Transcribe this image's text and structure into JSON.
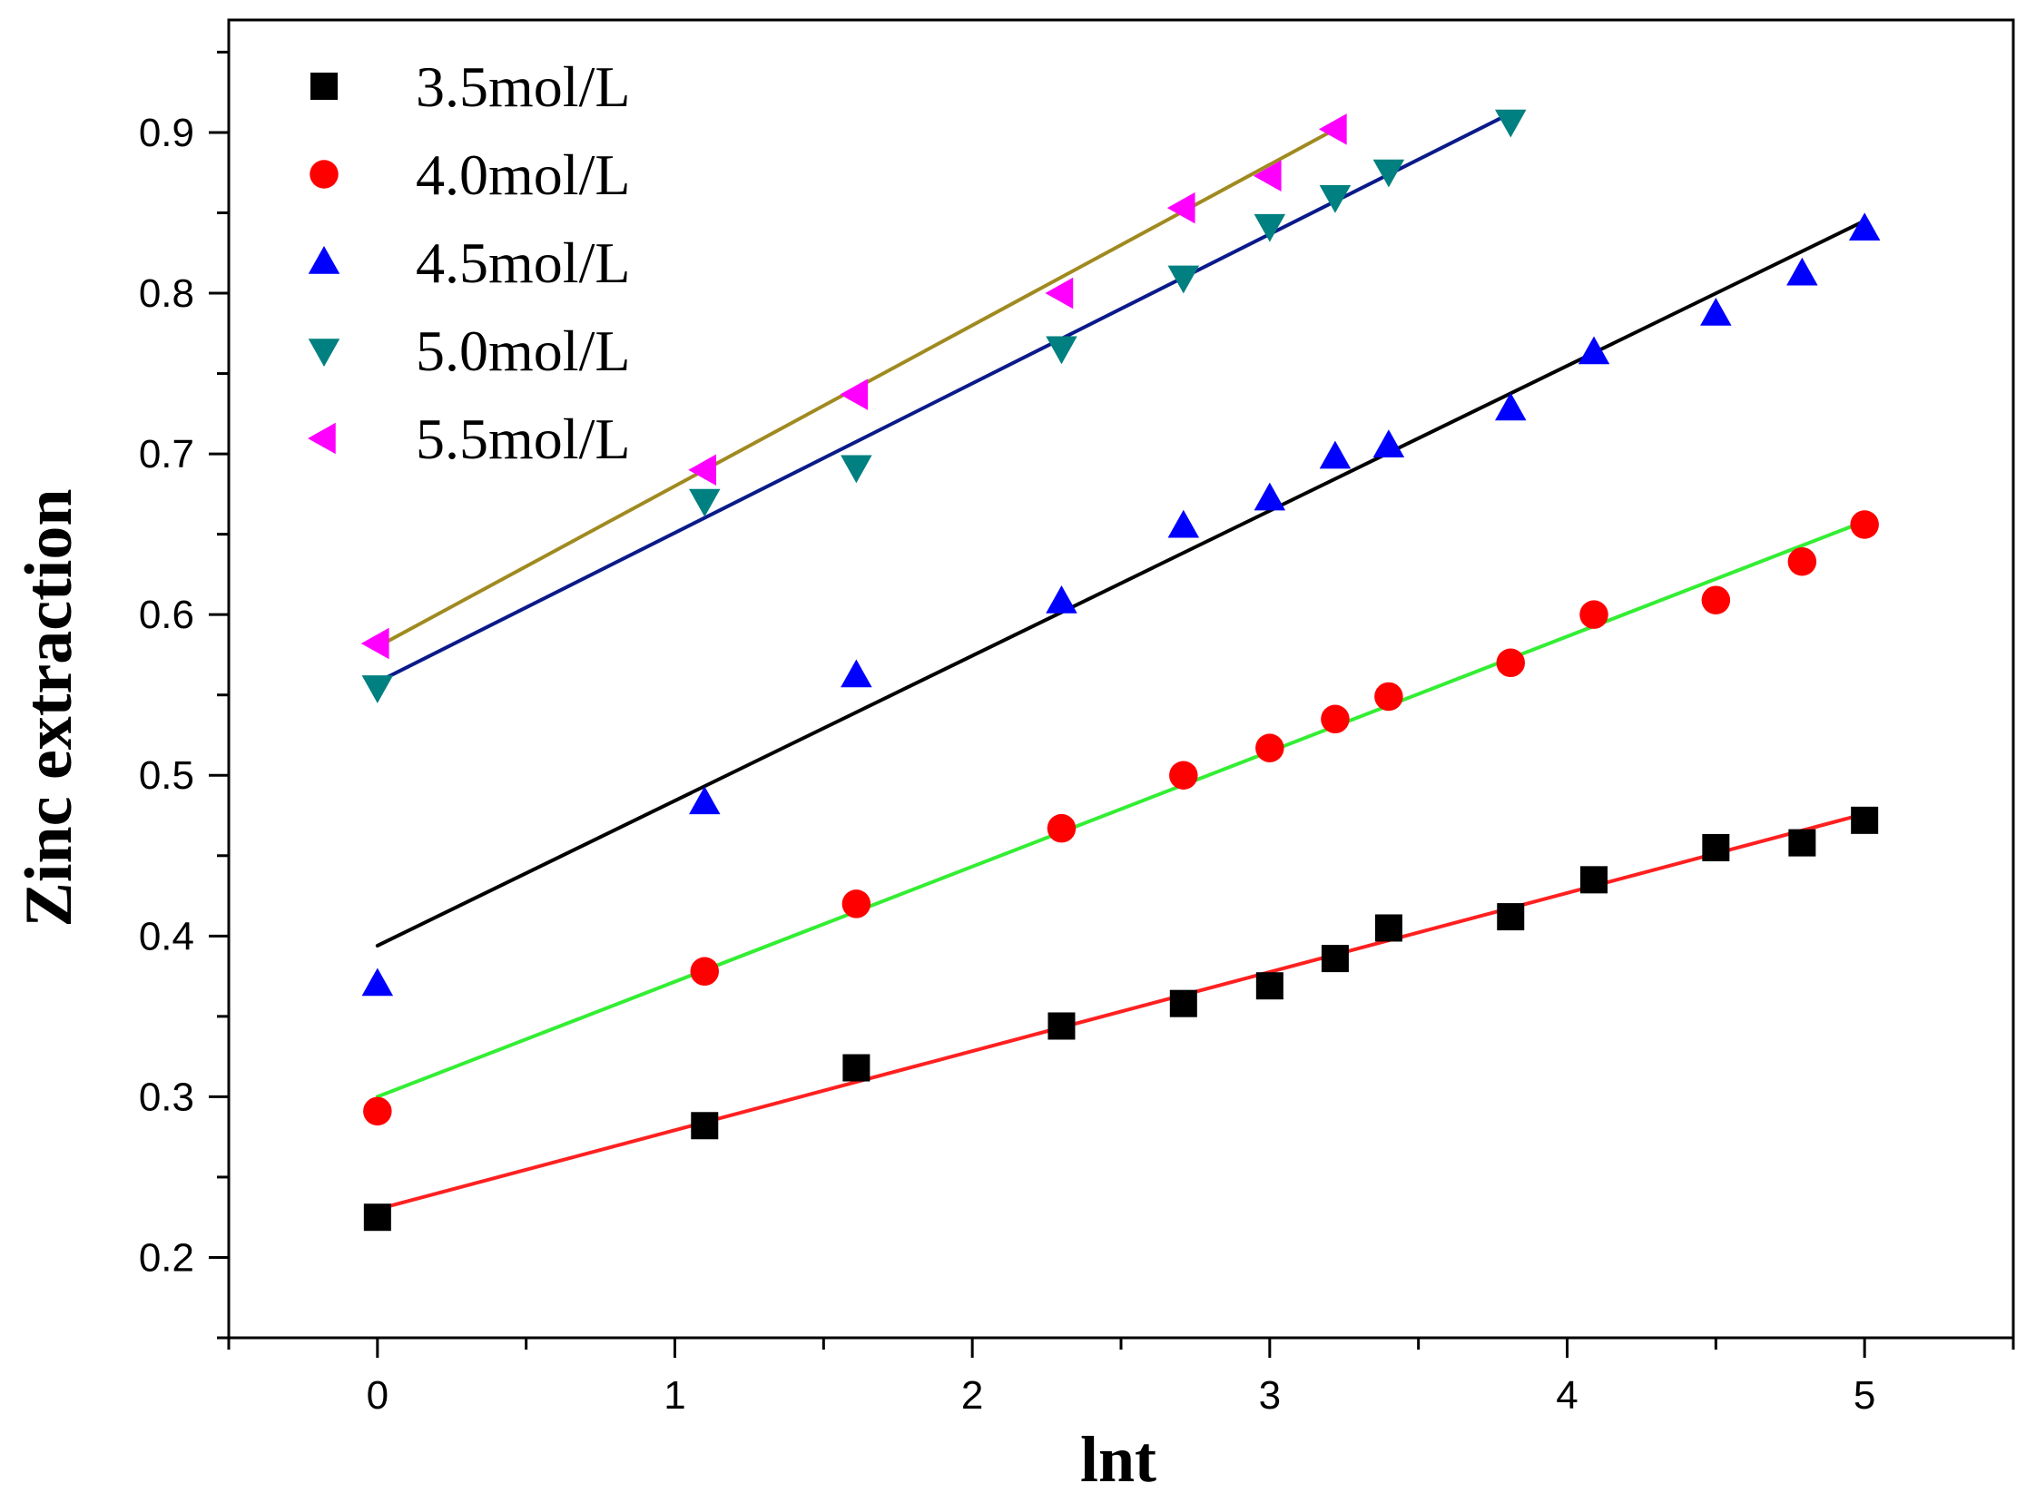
{
  "chart_data": {
    "type": "scatter",
    "title": "",
    "xlabel": "lnt",
    "ylabel": "Zinc extraction",
    "xlim": [
      -0.5,
      5.5
    ],
    "ylim": [
      0.15,
      0.97
    ],
    "xticks": [
      0,
      1,
      2,
      3,
      4,
      5
    ],
    "xtick_labels": [
      "0",
      "1",
      "2",
      "3",
      "4",
      "5"
    ],
    "yticks": [
      0.2,
      0.3,
      0.4,
      0.5,
      0.6,
      0.7,
      0.8,
      0.9
    ],
    "ytick_labels": [
      "0.2",
      "0.3",
      "0.4",
      "0.5",
      "0.6",
      "0.7",
      "0.8",
      "0.9"
    ],
    "grid": false,
    "legend_position": "top-left",
    "series": [
      {
        "name": "3.5mol/L",
        "marker": "square",
        "marker_color": "#000000",
        "fit_color": "#ff2020",
        "x": [
          0,
          1.1,
          1.61,
          2.3,
          2.71,
          3.0,
          3.22,
          3.4,
          3.81,
          4.09,
          4.5,
          4.79,
          5.0
        ],
        "y": [
          0.225,
          0.282,
          0.318,
          0.344,
          0.358,
          0.369,
          0.386,
          0.405,
          0.412,
          0.435,
          0.455,
          0.458,
          0.472
        ],
        "fit": [
          [
            0,
            0.23
          ],
          [
            5.0,
            0.476
          ]
        ]
      },
      {
        "name": "4.0mol/L",
        "marker": "circle",
        "marker_color": "#ff0000",
        "fit_color": "#33ee33",
        "x": [
          0,
          1.1,
          1.61,
          2.3,
          2.71,
          3.0,
          3.22,
          3.4,
          3.81,
          4.09,
          4.5,
          4.79,
          5.0
        ],
        "y": [
          0.291,
          0.378,
          0.42,
          0.467,
          0.5,
          0.517,
          0.535,
          0.549,
          0.57,
          0.6,
          0.609,
          0.633,
          0.656
        ],
        "fit": [
          [
            0,
            0.3
          ],
          [
            5.0,
            0.658
          ]
        ]
      },
      {
        "name": "4.5mol/L",
        "marker": "triangle-up",
        "marker_color": "#0000ff",
        "fit_color": "#000000",
        "x": [
          0,
          1.1,
          1.61,
          2.3,
          2.71,
          3.0,
          3.22,
          3.4,
          3.81,
          4.09,
          4.5,
          4.79,
          5.0
        ],
        "y": [
          0.37,
          0.483,
          0.562,
          0.608,
          0.655,
          0.672,
          0.698,
          0.705,
          0.728,
          0.763,
          0.787,
          0.812,
          0.84
        ],
        "fit": [
          [
            0,
            0.394
          ],
          [
            5.0,
            0.845
          ]
        ]
      },
      {
        "name": "5.0mol/L",
        "marker": "triangle-down",
        "marker_color": "#008080",
        "fit_color": "#0a1a8a",
        "x": [
          0,
          1.1,
          1.61,
          2.3,
          2.71,
          3.0,
          3.22,
          3.4,
          3.81
        ],
        "y": [
          0.555,
          0.671,
          0.692,
          0.766,
          0.81,
          0.842,
          0.86,
          0.876,
          0.907
        ],
        "fit": [
          [
            0,
            0.558
          ],
          [
            3.81,
            0.912
          ]
        ]
      },
      {
        "name": "5.5mol/L",
        "marker": "triangle-left",
        "marker_color": "#ff00ff",
        "fit_color": "#a08a20",
        "x": [
          0,
          1.1,
          1.61,
          2.3,
          2.71,
          3.0,
          3.22
        ],
        "y": [
          0.582,
          0.69,
          0.737,
          0.8,
          0.853,
          0.873,
          0.902
        ],
        "fit": [
          [
            0,
            0.58
          ],
          [
            3.22,
            0.902
          ]
        ]
      }
    ]
  }
}
